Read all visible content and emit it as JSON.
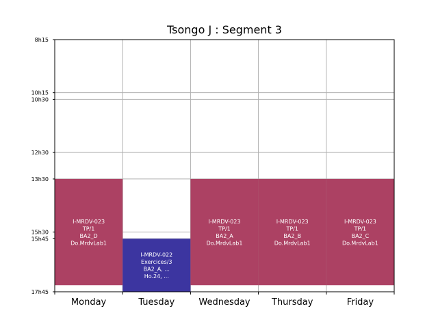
{
  "chart_data": {
    "type": "timetable",
    "title": "Tsongo J : Segment 3",
    "days": [
      "Monday",
      "Tuesday",
      "Wednesday",
      "Thursday",
      "Friday"
    ],
    "y_ticks": [
      "8h15",
      "10h15",
      "10h30",
      "12h30",
      "13h30",
      "15h30",
      "15h45",
      "17h45"
    ],
    "y_range": [
      "8h15",
      "17h45"
    ],
    "grid": true,
    "colors": {
      "tp": "#ac4163",
      "exercices": "#3c35a0"
    },
    "events": [
      {
        "day": "Monday",
        "start": "13h30",
        "end": "17h30",
        "color": "tp",
        "lines": [
          "I-MRDV-023",
          "TP/1",
          "BA2_D",
          "Do.MrdvLab1"
        ]
      },
      {
        "day": "Tuesday",
        "start": "15h45",
        "end": "17h45",
        "color": "exercices",
        "lines": [
          "I-MRDV-022",
          "Exercices/3",
          "BA2_A, ...",
          "Ho.24, ..."
        ]
      },
      {
        "day": "Wednesday",
        "start": "13h30",
        "end": "17h30",
        "color": "tp",
        "lines": [
          "I-MRDV-023",
          "TP/1",
          "BA2_A",
          "Do.MrdvLab1"
        ]
      },
      {
        "day": "Thursday",
        "start": "13h30",
        "end": "17h30",
        "color": "tp",
        "lines": [
          "I-MRDV-023",
          "TP/1",
          "BA2_B",
          "Do.MrdvLab1"
        ]
      },
      {
        "day": "Friday",
        "start": "13h30",
        "end": "17h30",
        "color": "tp",
        "lines": [
          "I-MRDV-023",
          "TP/1",
          "BA2_C",
          "Do.MrdvLab1"
        ]
      }
    ]
  }
}
